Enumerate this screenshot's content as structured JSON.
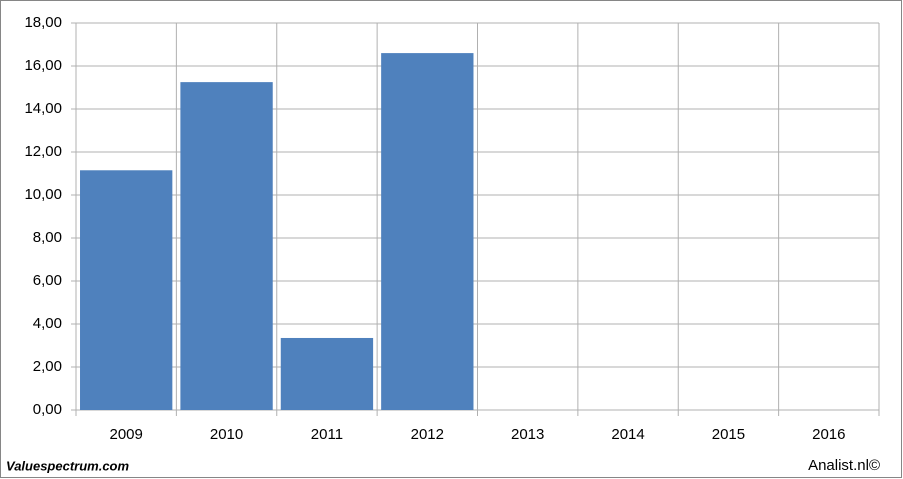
{
  "chart_data": {
    "type": "bar",
    "categories": [
      "2009",
      "2010",
      "2011",
      "2012",
      "2013",
      "2014",
      "2015",
      "2016"
    ],
    "values": [
      11.15,
      15.25,
      3.35,
      16.6,
      null,
      null,
      null,
      null
    ],
    "color": "#4f81bd",
    "ylim": [
      0,
      18
    ],
    "yticks": [
      {
        "value": 0,
        "label": "0,00"
      },
      {
        "value": 2,
        "label": "2,00"
      },
      {
        "value": 4,
        "label": "4,00"
      },
      {
        "value": 6,
        "label": "6,00"
      },
      {
        "value": 8,
        "label": "8,00"
      },
      {
        "value": 10,
        "label": "10,00"
      },
      {
        "value": 12,
        "label": "12,00"
      },
      {
        "value": 14,
        "label": "14,00"
      },
      {
        "value": 16,
        "label": "16,00"
      },
      {
        "value": 18,
        "label": "18,00"
      }
    ],
    "grid": true,
    "footer_left": "Valuespectrum.com",
    "footer_right": "Analist.nl©"
  }
}
